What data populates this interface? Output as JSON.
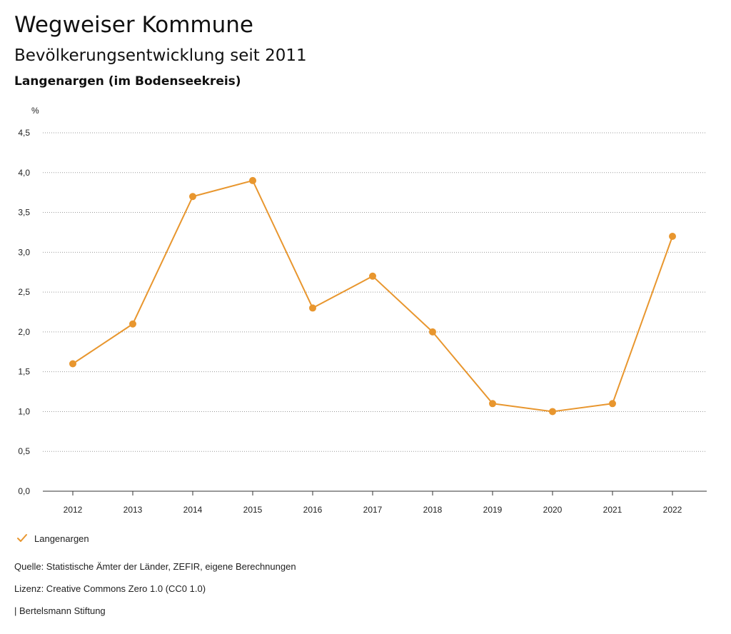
{
  "header": {
    "title": "Wegweiser Kommune",
    "subtitle": "Bevölkerungsentwicklung seit 2011",
    "chart_title": "Langenargen (im Bodenseekreis)"
  },
  "footer": {
    "source": "Quelle: Statistische Ämter der Länder, ZEFIR, eigene Berechnungen",
    "license": "Lizenz: Creative Commons Zero 1.0 (CC0 1.0)",
    "organization": "| Bertelsmann Stiftung"
  },
  "colors": {
    "series": "#e8962e",
    "grid": "#999999",
    "axis": "#333333"
  },
  "chart_data": {
    "type": "line",
    "title": "Langenargen (im Bodenseekreis)",
    "ylabel": "%",
    "xlabel": "",
    "categories": [
      "2012",
      "2013",
      "2014",
      "2015",
      "2016",
      "2017",
      "2018",
      "2019",
      "2020",
      "2021",
      "2022"
    ],
    "series": [
      {
        "name": "Langenargen",
        "values": [
          1.6,
          2.1,
          3.7,
          3.9,
          2.3,
          2.7,
          2.0,
          1.1,
          1.0,
          1.1,
          3.2
        ]
      }
    ],
    "ylim": [
      0,
      4.5
    ],
    "yticks": [
      "0,0",
      "0,5",
      "1,0",
      "1,5",
      "2,0",
      "2,5",
      "3,0",
      "3,5",
      "4,0",
      "4,5"
    ],
    "grid": true,
    "legend_position": "bottom-left",
    "legend_icon": "check-icon"
  }
}
